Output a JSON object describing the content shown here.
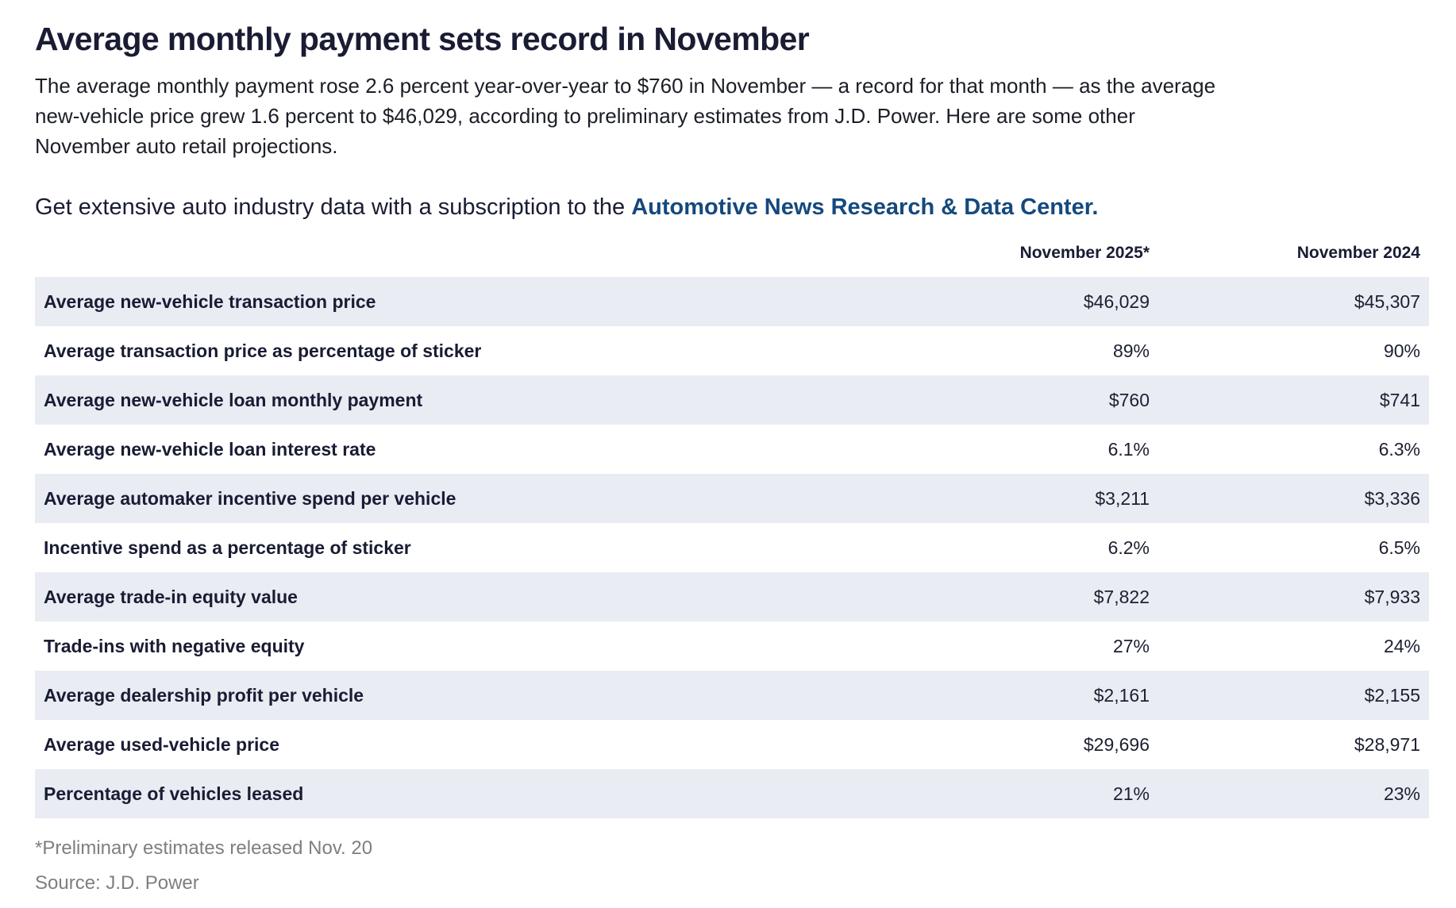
{
  "header": {
    "title": "Average monthly payment sets record in November"
  },
  "intro": {
    "lines": [
      "The average monthly payment rose 2.6 percent year-over-year to $760 in November — a record for that month — as the average",
      "new-vehicle price grew 1.6 percent to $46,029, according to preliminary estimates from J.D. Power. Here are some other",
      "November auto retail projections."
    ]
  },
  "cta": {
    "prefix": "Get extensive auto industry data with a subscription to the ",
    "link_text": "Automotive News Research & Data Center."
  },
  "chart_data": {
    "type": "table",
    "title": "Average monthly payment sets record in November",
    "columns": [
      "",
      "November 2025*",
      "November 2024"
    ],
    "rows": [
      {
        "label": "Average new-vehicle transaction price",
        "nov_2025": "$46,029",
        "nov_2024": "$45,307"
      },
      {
        "label": "Average transaction price as percentage of sticker",
        "nov_2025": "89%",
        "nov_2024": "90%"
      },
      {
        "label": "Average new-vehicle loan monthly payment",
        "nov_2025": "$760",
        "nov_2024": "$741"
      },
      {
        "label": "Average new-vehicle loan interest rate",
        "nov_2025": "6.1%",
        "nov_2024": "6.3%"
      },
      {
        "label": "Average automaker incentive spend per vehicle",
        "nov_2025": "$3,211",
        "nov_2024": "$3,336"
      },
      {
        "label": "Incentive spend as a percentage of sticker",
        "nov_2025": "6.2%",
        "nov_2024": "6.5%"
      },
      {
        "label": "Average trade-in equity value",
        "nov_2025": "$7,822",
        "nov_2024": "$7,933"
      },
      {
        "label": "Trade-ins with negative equity",
        "nov_2025": "27%",
        "nov_2024": "24%"
      },
      {
        "label": "Average dealership profit per vehicle",
        "nov_2025": "$2,161",
        "nov_2024": "$2,155"
      },
      {
        "label": "Average used-vehicle price",
        "nov_2025": "$29,696",
        "nov_2024": "$28,971"
      },
      {
        "label": "Percentage of vehicles leased",
        "nov_2025": "21%",
        "nov_2024": "23%"
      }
    ],
    "footnote": "*Preliminary estimates released Nov. 20",
    "source": "Source: J.D. Power"
  },
  "colors": {
    "heading": "#191c33",
    "link": "#15497d",
    "row_shade": "#e9ecf3",
    "muted_text": "#7e7e83"
  }
}
